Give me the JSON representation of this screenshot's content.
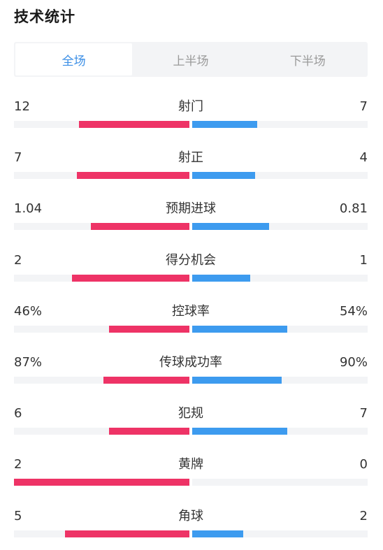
{
  "header": {
    "title": "技术统计"
  },
  "tabs": [
    {
      "label": "全场",
      "active": true
    },
    {
      "label": "上半场",
      "active": false
    },
    {
      "label": "下半场",
      "active": false
    }
  ],
  "colors": {
    "home": "#ee3366",
    "away": "#3d9bef",
    "tab_active": "#3a8ee6"
  },
  "stats": [
    {
      "name": "射门",
      "home": "12",
      "away": "7",
      "home_share": 0.63,
      "away_share": 0.37
    },
    {
      "name": "射正",
      "home": "7",
      "away": "4",
      "home_share": 0.64,
      "away_share": 0.36
    },
    {
      "name": "预期进球",
      "home": "1.04",
      "away": "0.81",
      "home_share": 0.56,
      "away_share": 0.44
    },
    {
      "name": "得分机会",
      "home": "2",
      "away": "1",
      "home_share": 0.67,
      "away_share": 0.33
    },
    {
      "name": "控球率",
      "home": "46%",
      "away": "54%",
      "home_share": 0.46,
      "away_share": 0.54
    },
    {
      "name": "传球成功率",
      "home": "87%",
      "away": "90%",
      "home_share": 0.49,
      "away_share": 0.51
    },
    {
      "name": "犯规",
      "home": "6",
      "away": "7",
      "home_share": 0.46,
      "away_share": 0.54
    },
    {
      "name": "黄牌",
      "home": "2",
      "away": "0",
      "home_share": 1.0,
      "away_share": 0.0
    },
    {
      "name": "角球",
      "home": "5",
      "away": "2",
      "home_share": 0.71,
      "away_share": 0.29
    }
  ]
}
